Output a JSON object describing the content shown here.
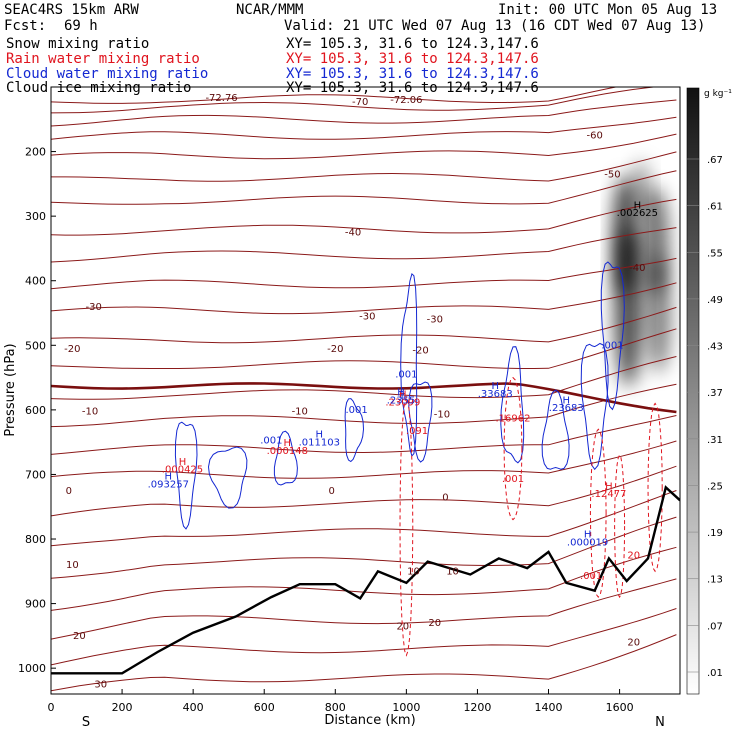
{
  "header": {
    "model": "SEAC4RS 15km ARW",
    "org": "NCAR/MMM",
    "init": "Init: 00 UTC Mon 05 Aug 13",
    "fcst_label": "Fcst:",
    "fcst_value": "69 h",
    "valid": "Valid: 21 UTC Wed 07 Aug 13 (16 CDT Wed 07 Aug 13)",
    "fields": [
      {
        "label": "Snow mixing ratio",
        "xy": "XY= 105.3, 31.6 to 124.3,147.6",
        "color": "#000000"
      },
      {
        "label": "Rain water mixing ratio",
        "xy": "XY= 105.3, 31.6 to 124.3,147.6",
        "color": "#e0141e"
      },
      {
        "label": "Cloud water mixing ratio",
        "xy": "XY= 105.3, 31.6 to 124.3,147.6",
        "color": "#1428d2"
      },
      {
        "label": "Cloud ice mixing ratio",
        "xy": "XY= 105.3, 31.6 to 124.3,147.6",
        "color": "#000000"
      }
    ]
  },
  "chart_data": {
    "type": "cross-section contour",
    "xlabel": "Distance (km)",
    "ylabel": "Pressure (hPa)",
    "xlim": [
      0,
      1770
    ],
    "ylim": [
      1040,
      100
    ],
    "x_ticks": [
      0,
      200,
      400,
      600,
      800,
      1000,
      1200,
      1400,
      1600
    ],
    "y_ticks": [
      200,
      300,
      400,
      500,
      600,
      700,
      800,
      900,
      1000
    ],
    "endpoint_labels": {
      "left": "S",
      "right": "N"
    },
    "colorbar": {
      "unit": "g kg⁻¹",
      "levels": [
        0.01,
        0.07,
        0.13,
        0.19,
        0.25,
        0.31,
        0.37,
        0.43,
        0.49,
        0.55,
        0.61,
        0.67
      ],
      "tick_labels": [
        ".01",
        ".07",
        ".13",
        ".19",
        ".25",
        ".31",
        ".37",
        ".43",
        ".49",
        ".55",
        ".61",
        ".67"
      ]
    },
    "temperature_contours": {
      "units": "deg C",
      "color": "#8b1a1a",
      "labels": [
        {
          "text": "-72.76",
          "x": 480,
          "p": 122
        },
        {
          "text": "-72.06",
          "x": 1000,
          "p": 125
        },
        {
          "text": "-70",
          "x": 870,
          "p": 128
        },
        {
          "text": "-60",
          "x": 1530,
          "p": 180
        },
        {
          "text": "-50",
          "x": 1580,
          "p": 240
        },
        {
          "text": "-40",
          "x": 850,
          "p": 330
        },
        {
          "text": "-40",
          "x": 1650,
          "p": 385
        },
        {
          "text": "-30",
          "x": 120,
          "p": 445
        },
        {
          "text": "-30",
          "x": 890,
          "p": 460
        },
        {
          "text": "-30",
          "x": 1080,
          "p": 465
        },
        {
          "text": "-20",
          "x": 60,
          "p": 510
        },
        {
          "text": "-20",
          "x": 800,
          "p": 510
        },
        {
          "text": "-20",
          "x": 1040,
          "p": 513
        },
        {
          "text": "-10",
          "x": 110,
          "p": 607
        },
        {
          "text": "-10",
          "x": 700,
          "p": 607
        },
        {
          "text": "-10",
          "x": 1100,
          "p": 612
        },
        {
          "text": "0",
          "x": 50,
          "p": 730
        },
        {
          "text": "0",
          "x": 790,
          "p": 730
        },
        {
          "text": "0",
          "x": 1110,
          "p": 740
        },
        {
          "text": "10",
          "x": 60,
          "p": 845
        },
        {
          "text": "10",
          "x": 1020,
          "p": 855
        },
        {
          "text": "10",
          "x": 1130,
          "p": 855
        },
        {
          "text": "20",
          "x": 80,
          "p": 955
        },
        {
          "text": "20",
          "x": 990,
          "p": 940
        },
        {
          "text": "20",
          "x": 1080,
          "p": 935
        },
        {
          "text": "20",
          "x": 1640,
          "p": 965
        },
        {
          "text": "30",
          "x": 140,
          "p": 1030
        }
      ]
    },
    "snow": {
      "color": "#000000",
      "max": {
        "label": "H",
        "value": ".002625",
        "x": 1650,
        "p": 300
      }
    },
    "rain_water": {
      "color": "#e0141e",
      "labels": [
        {
          "kind": "max",
          "label": "H",
          "value": ".000425",
          "x": 370,
          "p": 697
        },
        {
          "kind": "max",
          "label": "H",
          "value": ".000148",
          "x": 665,
          "p": 668
        },
        {
          "kind": "max",
          "label": "H",
          "value": ".23099",
          "x": 990,
          "p": 593
        },
        {
          "kind": "contour",
          "value": ".091",
          "x": 1030,
          "p": 637
        },
        {
          "kind": "contour",
          "value": ".16962",
          "x": 1300,
          "p": 618
        },
        {
          "kind": "contour",
          "value": ".001",
          "x": 1300,
          "p": 712
        },
        {
          "kind": "max",
          "label": "H",
          "value": ".12477",
          "x": 1570,
          "p": 735
        },
        {
          "kind": "contour",
          "value": ".001",
          "x": 1520,
          "p": 862
        },
        {
          "kind": "contour",
          "value": "20",
          "x": 1640,
          "p": 830
        }
      ]
    },
    "cloud_water": {
      "color": "#1428d2",
      "labels": [
        {
          "kind": "max",
          "label": "H",
          "value": ".093257",
          "x": 330,
          "p": 720
        },
        {
          "kind": "contour",
          "value": ".001",
          "x": 620,
          "p": 652
        },
        {
          "kind": "max",
          "label": "H",
          "value": ".011103",
          "x": 755,
          "p": 655
        },
        {
          "kind": "contour",
          "value": ".001",
          "x": 860,
          "p": 605
        },
        {
          "kind": "contour",
          "value": ".001",
          "x": 1000,
          "p": 550
        },
        {
          "kind": "max",
          "label": "H",
          "value": ".2355",
          "x": 985,
          "p": 590
        },
        {
          "kind": "max",
          "label": "H",
          "value": ".33683",
          "x": 1250,
          "p": 580
        },
        {
          "kind": "max",
          "label": "H",
          "value": ".23683",
          "x": 1450,
          "p": 602
        },
        {
          "kind": "contour",
          "value": ".001",
          "x": 1580,
          "p": 505
        },
        {
          "kind": "max",
          "label": "H",
          "value": ".000019",
          "x": 1510,
          "p": 810
        }
      ]
    }
  }
}
